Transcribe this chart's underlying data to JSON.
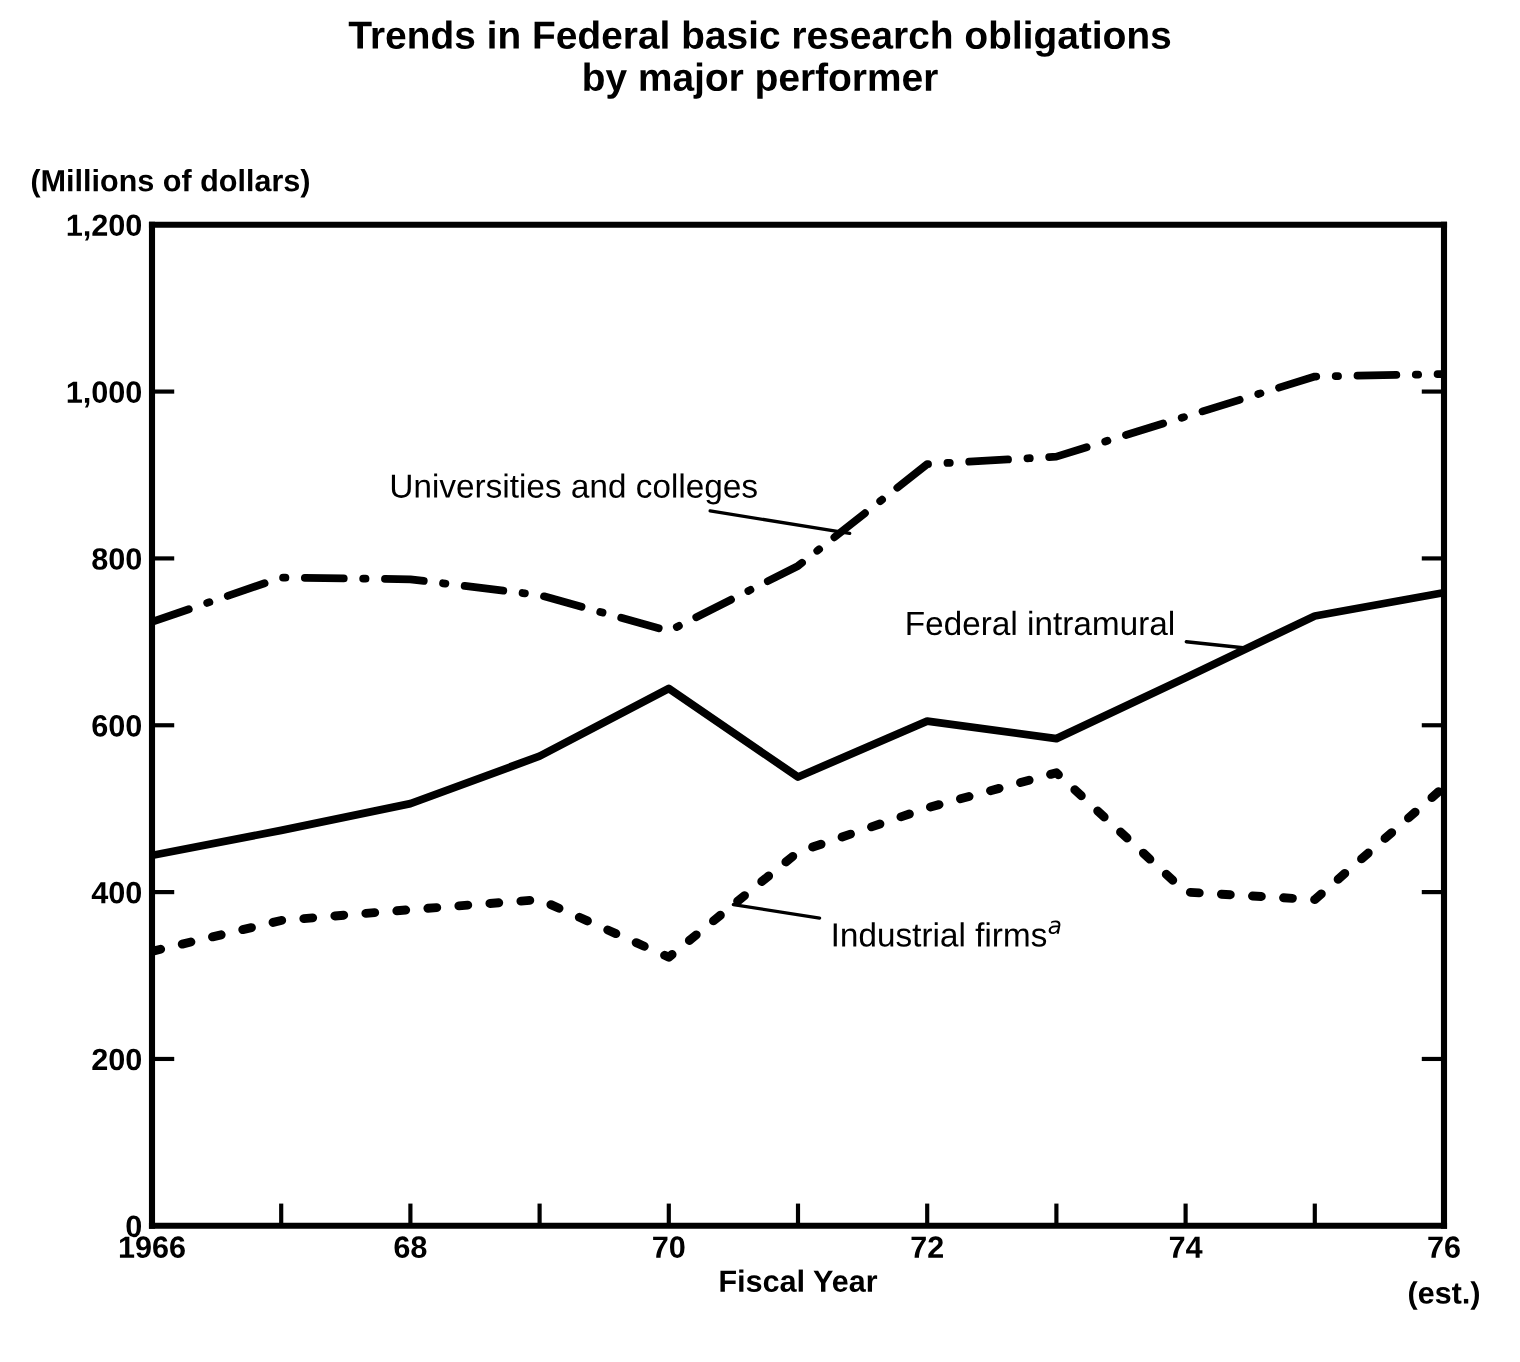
{
  "chart_data": {
    "type": "line",
    "title": "Trends in Federal basic research obligations\nby major performer",
    "ylabel": "(Millions of dollars)",
    "xlabel": "Fiscal Year",
    "x": [
      1966,
      1967,
      1968,
      1969,
      1970,
      1971,
      1972,
      1973,
      1974,
      1975,
      1976
    ],
    "series": [
      {
        "color": "#000000",
        "line_style": "dashdot",
        "values": [
          724,
          777,
          775,
          756,
          713,
          791,
          913,
          922,
          970,
          1018,
          1021
        ]
      },
      {
        "color": "#000000",
        "line_style": "solid",
        "values": [
          444,
          474,
          506,
          563,
          644,
          538,
          605,
          584,
          657,
          731,
          759
        ]
      },
      {
        "color": "#000000",
        "line_style": "dotted",
        "values": [
          329,
          366,
          379,
          391,
          322,
          448,
          501,
          543,
          400,
          391,
          526
        ]
      }
    ],
    "annotations": [
      {
        "text": "Universities and colleges",
        "x": 1971.4,
        "y": 830
      },
      {
        "text": "Federal intramural",
        "x": 1974.5,
        "y": 692
      },
      {
        "text": "Industrial firms$^{a}$",
        "x": 1970.5,
        "y": 385
      },
      "(est.)"
    ],
    "xlim": [
      1966,
      1976
    ],
    "ylim": [
      0,
      1200
    ],
    "xticks": [
      {
        "value": 1966,
        "label": "1966"
      },
      {
        "value": 1967,
        "label": null
      },
      {
        "value": 1968,
        "label": "68"
      },
      {
        "value": 1969,
        "label": null
      },
      {
        "value": 1970,
        "label": "70"
      },
      {
        "value": 1971,
        "label": null
      },
      {
        "value": 1972,
        "label": "72"
      },
      {
        "value": 1973,
        "label": null
      },
      {
        "value": 1974,
        "label": "74"
      },
      {
        "value": 1975,
        "label": null
      },
      {
        "value": 1976,
        "label": "76"
      }
    ],
    "yticks": [
      0,
      200,
      400,
      600,
      800,
      {
        "value": 1000,
        "label": "1,000"
      },
      {
        "value": 1200,
        "label": "1,200"
      }
    ],
    "grid": false,
    "legend": false
  }
}
